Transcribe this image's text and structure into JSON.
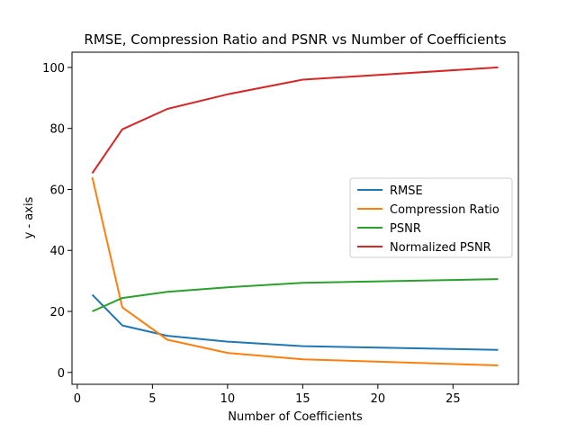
{
  "chart_data": {
    "type": "line",
    "title": "RMSE, Compression Ratio and PSNR vs Number of Coefficients",
    "xlabel": "Number of Coefficients",
    "ylabel": "y - axis",
    "xlim": [
      -0.35,
      29.35
    ],
    "ylim": [
      -3.9,
      105.0
    ],
    "xticks": [
      0,
      5,
      10,
      15,
      20,
      25
    ],
    "yticks": [
      0,
      20,
      40,
      60,
      80,
      100
    ],
    "grid": false,
    "legend_position": "center-right",
    "x": [
      1,
      3,
      6,
      10,
      15,
      28
    ],
    "series": [
      {
        "name": "RMSE",
        "color": "#1f77b4",
        "values": [
          25.5,
          15.4,
          12.0,
          10.1,
          8.6,
          7.4
        ]
      },
      {
        "name": "Compression Ratio",
        "color": "#ff7f0e",
        "values": [
          64.0,
          21.3,
          10.7,
          6.4,
          4.3,
          2.3
        ]
      },
      {
        "name": "PSNR",
        "color": "#2ca02c",
        "values": [
          20.0,
          24.4,
          26.4,
          27.9,
          29.4,
          30.6
        ]
      },
      {
        "name": "Normalized PSNR",
        "color": "#d62728",
        "values": [
          65.3,
          79.7,
          86.4,
          91.2,
          96.0,
          100.0
        ]
      }
    ]
  }
}
